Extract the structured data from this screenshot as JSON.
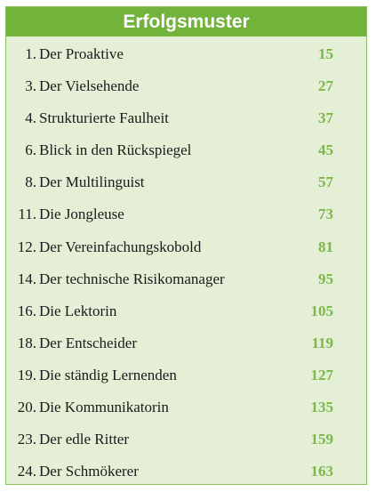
{
  "toc": {
    "title": "Erfolgsmuster",
    "entries": [
      {
        "num": "1.",
        "title": "Der Proaktive",
        "page": "15"
      },
      {
        "num": "3.",
        "title": "Der Vielsehende",
        "page": "27"
      },
      {
        "num": "4.",
        "title": "Strukturierte Faulheit",
        "page": "37"
      },
      {
        "num": "6.",
        "title": "Blick in den Rückspiegel",
        "page": "45"
      },
      {
        "num": "8.",
        "title": "Der Multilinguist",
        "page": "57"
      },
      {
        "num": "11.",
        "title": "Die Jongleuse",
        "page": "73"
      },
      {
        "num": "12.",
        "title": "Der Vereinfachungskobold",
        "page": "81"
      },
      {
        "num": "14.",
        "title": "Der technische Risikomanager",
        "page": "95"
      },
      {
        "num": "16.",
        "title": "Die Lektorin",
        "page": "105"
      },
      {
        "num": "18.",
        "title": "Der Entscheider",
        "page": "119"
      },
      {
        "num": "19.",
        "title": "Die ständig Lernenden",
        "page": "127"
      },
      {
        "num": "20.",
        "title": "Die Kommunikatorin",
        "page": "135"
      },
      {
        "num": "23.",
        "title": "Der edle Ritter",
        "page": "159"
      },
      {
        "num": "24.",
        "title": "Der Schmökerer",
        "page": "163"
      }
    ]
  }
}
